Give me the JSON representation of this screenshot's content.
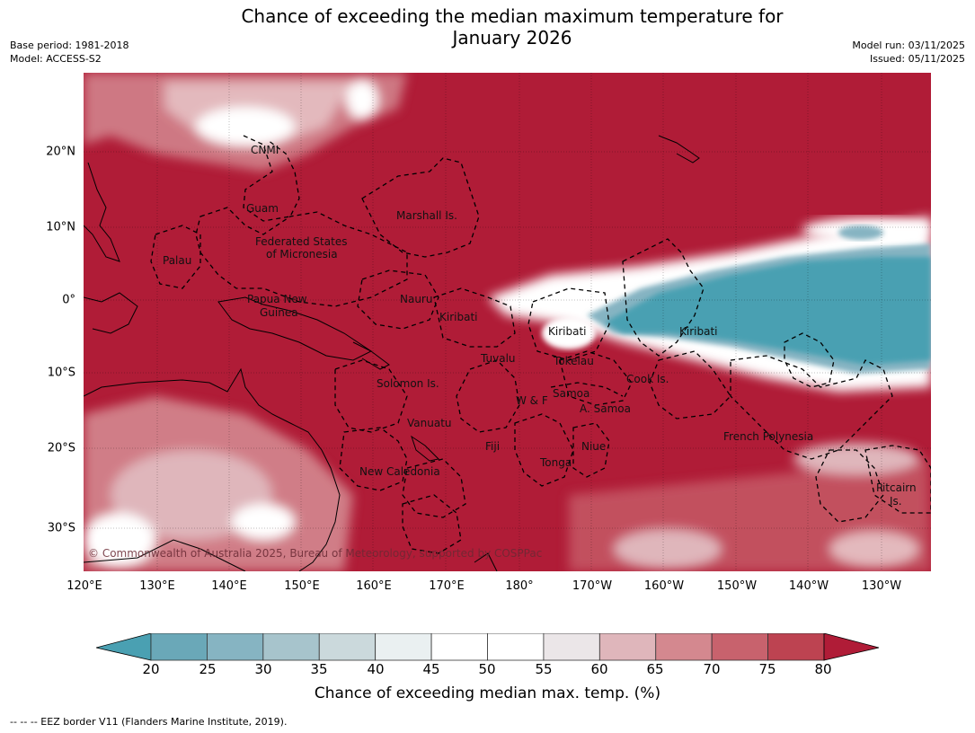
{
  "title_line1": "Chance of exceeding the median maximum temperature for",
  "title_line2": "January 2026",
  "base_period": "Base period: 1981-2018",
  "model": "Model: ACCESS-S2",
  "model_run": "Model run: 03/11/2025",
  "issued": "Issued: 05/11/2025",
  "credit": "© Commonwealth of Australia 2025, Bureau of Meteorology, supported by COSPPac",
  "footnote": "--  --  -- EEZ border V11 (Flanders Marine Institute, 2019).",
  "colorbar_label": "Chance of exceeding median max. temp. (%)",
  "lon_labels": [
    "120°E",
    "130°E",
    "140°E",
    "150°E",
    "160°E",
    "170°E",
    "180°",
    "170°W",
    "160°W",
    "150°W",
    "140°W",
    "130°W"
  ],
  "lat_labels": [
    "20°N",
    "10°N",
    "0°",
    "10°S",
    "20°S",
    "30°S"
  ],
  "colorbar_ticks": [
    "20",
    "25",
    "30",
    "35",
    "40",
    "45",
    "50",
    "55",
    "60",
    "65",
    "70",
    "75",
    "80"
  ],
  "colorbar_colors": [
    "#6aa8b8",
    "#86b4c2",
    "#a7c4cc",
    "#cbd9dc",
    "#eaf0f1",
    "#ffffff",
    "#ffffff",
    "#ebe6e8",
    "#dfb6bb",
    "#d4888f",
    "#c8626d",
    "#bd4351"
  ],
  "colors": {
    "below": "#4aa0b2",
    "above": "#b01c37",
    "neutral": "#ffffff"
  },
  "places": {
    "cnmi": "CNMI",
    "guam": "Guam",
    "palau": "Palau",
    "fsm1": "Federated States",
    "fsm2": "of Micronesia",
    "marshall": "Marshall Is.",
    "png1": "Papua New",
    "png2": "Guinea",
    "nauru": "Nauru",
    "kiribati_w": "Kiribati",
    "kiribati_c": "Kiribati",
    "kiribati_e": "Kiribati",
    "tuvalu": "Tuvalu",
    "tokelau": "Tokelau",
    "cook": "Cook Is.",
    "solomon": "Solomon Is.",
    "samoa": "Samoa",
    "wf": "W & F",
    "asamoa": "A. Samoa",
    "vanuatu": "Vanuatu",
    "fiji": "Fiji",
    "niue": "Niue",
    "tonga": "Tonga",
    "newcal": "New Caledonia",
    "frpoly": "French Polynesia",
    "pitcairn1": "Pitcairn",
    "pitcairn2": "Is."
  }
}
